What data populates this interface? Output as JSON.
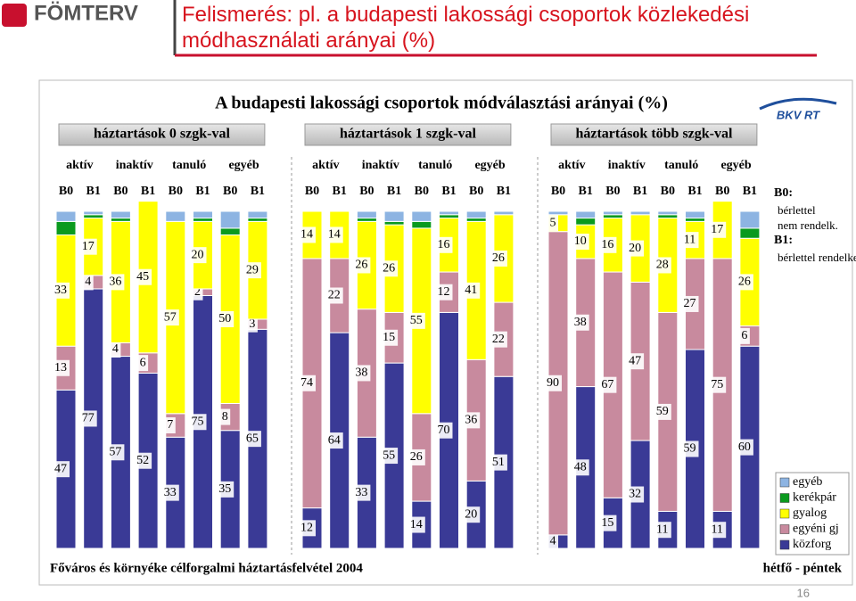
{
  "header": {
    "logo": "FÖMTERV",
    "title": "Felismerés: pl. a budapesti lakossági csoportok közlekedési módhasználati arányai (%)"
  },
  "slide_number": 16,
  "chart_data": {
    "type": "stacked-bar",
    "title": "A budapesti lakossági csoportok módválasztási arányai (%)",
    "logo": "BKV RT",
    "groups": [
      {
        "label": "háztartások 0 szgk-val",
        "subgroups": [
          "aktív",
          "inaktív",
          "tanuló",
          "egyéb"
        ]
      },
      {
        "label": "háztartások 1 szgk-val",
        "subgroups": [
          "aktív",
          "inaktív",
          "tanuló",
          "egyéb"
        ]
      },
      {
        "label": "háztartások több szgk-val",
        "subgroups": [
          "aktív",
          "inaktív",
          "tanuló",
          "egyéb"
        ]
      }
    ],
    "categories": [
      "B0",
      "B1",
      "B0",
      "B1",
      "B0",
      "B1",
      "B0",
      "B1",
      "B0",
      "B1",
      "B0",
      "B1",
      "B0",
      "B1",
      "B0",
      "B1",
      "B0",
      "B1",
      "B0",
      "B1",
      "B0",
      "B1",
      "B0",
      "B1"
    ],
    "ylim": [
      0,
      100
    ],
    "series": [
      {
        "name": "egyéb",
        "color": "#8db4e2",
        "data_labels": false,
        "values": [
          3,
          1,
          2,
          0,
          3,
          2,
          5,
          2,
          0,
          0,
          2,
          3,
          3,
          1,
          2,
          1,
          1,
          2,
          1,
          1,
          1,
          2,
          0,
          5
        ]
      },
      {
        "name": "kerékpár",
        "color": "#0a9a1e",
        "data_labels": false,
        "values": [
          4,
          1,
          1,
          0,
          0,
          1,
          2,
          1,
          0,
          0,
          1,
          1,
          2,
          1,
          1,
          0,
          0,
          2,
          1,
          0,
          1,
          1,
          0,
          3
        ]
      },
      {
        "name": "gyalog",
        "color": "#ffff00",
        "data_labels": true,
        "values": [
          33,
          17,
          36,
          45,
          57,
          20,
          50,
          29,
          14,
          14,
          26,
          26,
          55,
          16,
          41,
          26,
          5,
          10,
          16,
          20,
          28,
          11,
          17,
          26
        ]
      },
      {
        "name": "egyéni gj",
        "color": "#c88a9e",
        "data_labels": true,
        "values": [
          13,
          4,
          4,
          6,
          7,
          2,
          8,
          3,
          74,
          22,
          38,
          15,
          26,
          12,
          36,
          22,
          90,
          38,
          67,
          47,
          59,
          27,
          75,
          6
        ]
      },
      {
        "name": "közforg",
        "color": "#3a3a96",
        "data_labels": true,
        "values": [
          47,
          77,
          57,
          52,
          33,
          75,
          35,
          65,
          12,
          64,
          33,
          55,
          14,
          70,
          20,
          51,
          4,
          48,
          15,
          32,
          11,
          59,
          11,
          60
        ]
      }
    ],
    "legend_position": "lower right",
    "notes": [
      {
        "term": "B0:",
        "text": "bérlettel nem rendelk."
      },
      {
        "term": "B1:",
        "text": "bérlettel rendelkezők"
      }
    ],
    "source": "Főváros és környéke célforgalmi háztartásfelvétel 2004",
    "period": "hétfő - péntek"
  }
}
